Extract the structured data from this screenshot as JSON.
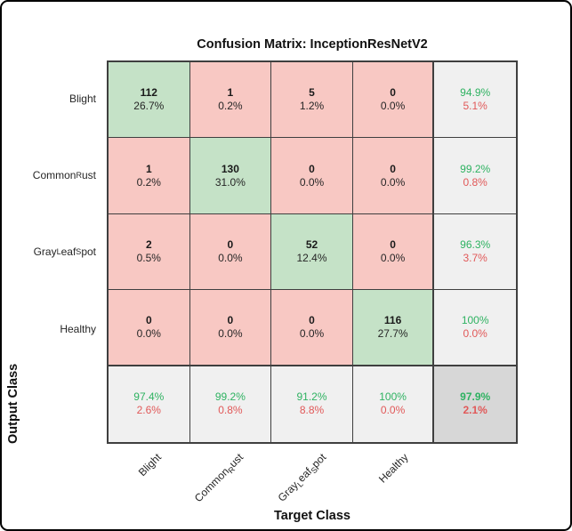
{
  "chart_data": {
    "type": "heatmap",
    "subtype": "confusion_matrix",
    "title": "Confusion Matrix: InceptionResNetV2",
    "xlabel": "Target Class",
    "ylabel": "Output Class",
    "legend_position": "none",
    "classes": [
      {
        "name": "Blight",
        "segments": [
          {
            "text": "Blight",
            "sub": false
          }
        ]
      },
      {
        "name": "Common Rust",
        "segments": [
          {
            "text": "Common",
            "sub": false
          },
          {
            "text": "R",
            "sub": true
          },
          {
            "text": "ust",
            "sub": false
          }
        ]
      },
      {
        "name": "Gray Leaf Spot",
        "segments": [
          {
            "text": "Gray",
            "sub": false
          },
          {
            "text": "L",
            "sub": true
          },
          {
            "text": "eaf",
            "sub": false
          },
          {
            "text": "S",
            "sub": true
          },
          {
            "text": "pot",
            "sub": false
          }
        ]
      },
      {
        "name": "Healthy",
        "segments": [
          {
            "text": "Healthy",
            "sub": false
          }
        ]
      }
    ],
    "rows_are": "Output Class",
    "cols_are": "Target Class",
    "counts": [
      [
        112,
        1,
        5,
        0
      ],
      [
        1,
        130,
        0,
        0
      ],
      [
        2,
        0,
        52,
        0
      ],
      [
        0,
        0,
        0,
        116
      ]
    ],
    "cell_percents": [
      [
        "26.7%",
        "0.2%",
        "1.2%",
        "0.0%"
      ],
      [
        "0.2%",
        "31.0%",
        "0.0%",
        "0.0%"
      ],
      [
        "0.5%",
        "0.0%",
        "12.4%",
        "0.0%"
      ],
      [
        "0.0%",
        "0.0%",
        "0.0%",
        "27.7%"
      ]
    ],
    "row_summary": [
      {
        "good": "94.9%",
        "bad": "5.1%"
      },
      {
        "good": "99.2%",
        "bad": "0.8%"
      },
      {
        "good": "96.3%",
        "bad": "3.7%"
      },
      {
        "good": "100%",
        "bad": "0.0%"
      }
    ],
    "col_summary": [
      {
        "good": "97.4%",
        "bad": "2.6%"
      },
      {
        "good": "99.2%",
        "bad": "0.8%"
      },
      {
        "good": "91.2%",
        "bad": "8.8%"
      },
      {
        "good": "100%",
        "bad": "0.0%"
      }
    ],
    "overall": {
      "good": "97.9%",
      "bad": "2.1%"
    },
    "colors": {
      "diagonal_fill": "#c5e2c7",
      "off_diagonal_fill": "#f8c8c3",
      "summary_fill": "#f0f0f0",
      "overall_fill": "#d7d7d7",
      "good_text": "#2eb261",
      "bad_text": "#e15858",
      "grid_line": "#3f3f3f",
      "frame_border": "#000000"
    }
  }
}
